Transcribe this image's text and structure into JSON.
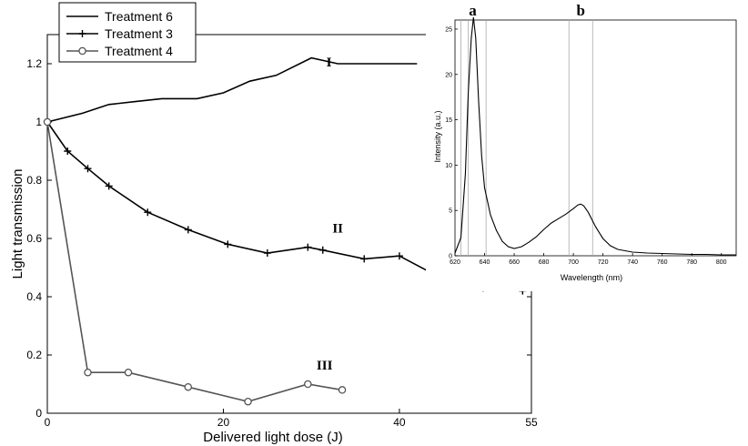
{
  "chart_data": [
    {
      "type": "line",
      "title": "",
      "xlabel": "Delivered light dose (J)",
      "ylabel": "Light transmission",
      "xlim": [
        0,
        55
      ],
      "ylim": [
        0,
        1.3
      ],
      "x_ticks": [
        "0",
        "20",
        "40",
        "55"
      ],
      "y_ticks": [
        "0",
        "0.2",
        "0.4",
        "0.6",
        "0.8",
        "1",
        "1.2"
      ],
      "grid": false,
      "legend_placement": "top-left",
      "series": [
        {
          "name": "Treatment 6",
          "color": "#000000",
          "marker": "none",
          "x": [
            0,
            4,
            7,
            10,
            13,
            17,
            20,
            23,
            26,
            30,
            33,
            36,
            38,
            42
          ],
          "y": [
            1.0,
            1.03,
            1.06,
            1.07,
            1.08,
            1.08,
            1.1,
            1.14,
            1.16,
            1.22,
            1.2,
            1.2,
            1.2,
            1.2
          ]
        },
        {
          "name": "Treatment 3",
          "color": "#000000",
          "marker": "plus",
          "x": [
            0,
            2.3,
            4.6,
            7.0,
            11.4,
            16.0,
            20.5,
            25.0,
            29.6,
            31.3,
            36.0,
            40.0,
            45.0,
            49.5,
            54.0
          ],
          "y": [
            1.0,
            0.9,
            0.84,
            0.78,
            0.69,
            0.63,
            0.58,
            0.55,
            0.57,
            0.56,
            0.53,
            0.54,
            0.46,
            0.43,
            0.42
          ]
        },
        {
          "name": "Treatment 4",
          "color": "#555555",
          "marker": "circle",
          "x": [
            0,
            4.6,
            9.2,
            16.0,
            22.8,
            29.6,
            33.5
          ],
          "y": [
            1.0,
            0.14,
            0.14,
            0.09,
            0.04,
            0.1,
            0.08
          ]
        }
      ],
      "annotations": [
        {
          "text": "I",
          "x": 32.0,
          "y": 1.19
        },
        {
          "text": "II",
          "x": 33.0,
          "y": 0.62
        },
        {
          "text": "III",
          "x": 31.5,
          "y": 0.15
        }
      ]
    },
    {
      "type": "line",
      "title": "",
      "xlabel": "Wavelength (nm)",
      "ylabel": "Intensity (a.u.)",
      "xlim": [
        620,
        810
      ],
      "ylim": [
        0,
        26
      ],
      "x_ticks": [
        "620",
        "640",
        "660",
        "680",
        "700",
        "720",
        "740",
        "760",
        "780",
        "800"
      ],
      "y_ticks": [
        "0",
        "5",
        "10",
        "15",
        "20",
        "25"
      ],
      "grid": false,
      "series": [
        {
          "color": "#000000",
          "x": [
            620,
            624,
            627,
            629,
            631,
            632.5,
            634,
            636,
            638,
            640,
            644,
            648,
            652,
            656,
            660,
            665,
            670,
            675,
            680,
            685,
            690,
            695,
            700,
            703,
            705,
            707,
            710,
            715,
            720,
            725,
            730,
            740,
            750,
            760,
            770,
            780,
            790,
            800,
            810
          ],
          "y": [
            0.3,
            2,
            9,
            18,
            24,
            26.3,
            24,
            17,
            11,
            7.5,
            4.5,
            2.8,
            1.6,
            1.0,
            0.8,
            1.0,
            1.5,
            2.1,
            2.9,
            3.6,
            4.1,
            4.6,
            5.2,
            5.6,
            5.7,
            5.5,
            4.8,
            3.2,
            1.9,
            1.1,
            0.7,
            0.4,
            0.3,
            0.25,
            0.2,
            0.15,
            0.15,
            0.1,
            0.1
          ]
        }
      ],
      "vertical_lines": [
        624,
        629,
        641,
        697,
        713
      ],
      "annotations": [
        {
          "text": "a",
          "x": 632,
          "y": 27.5
        },
        {
          "text": "b",
          "x": 705,
          "y": 27.5
        }
      ]
    }
  ]
}
